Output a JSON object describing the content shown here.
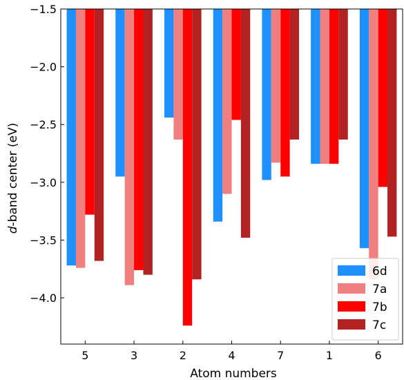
{
  "chart_data": {
    "type": "bar",
    "xlabel": "Atom numbers",
    "ylabel_italic": "d",
    "ylabel_rest": "-band center (eV)",
    "categories": [
      "5",
      "3",
      "2",
      "4",
      "7",
      "1",
      "6"
    ],
    "series": [
      {
        "name": "6d",
        "color": "#1e90ff",
        "values": [
          -3.72,
          -2.95,
          -2.44,
          -3.34,
          -2.98,
          -2.84,
          -3.57
        ]
      },
      {
        "name": "7a",
        "color": "#f08080",
        "values": [
          -3.74,
          -3.89,
          -2.63,
          -3.1,
          -2.83,
          -2.84,
          -3.84
        ]
      },
      {
        "name": "7b",
        "color": "#ff0000",
        "values": [
          -3.28,
          -3.76,
          -4.24,
          -2.46,
          -2.95,
          -2.84,
          -3.04
        ]
      },
      {
        "name": "7c",
        "color": "#b22222",
        "values": [
          -3.68,
          -3.8,
          -3.84,
          -3.48,
          -2.63,
          -2.63,
          -3.47
        ]
      }
    ],
    "yticks": [
      "−1.5",
      "−2.0",
      "−2.5",
      "−3.0",
      "−3.5",
      "−4.0"
    ],
    "ytick_values": [
      -1.5,
      -2.0,
      -2.5,
      -3.0,
      -3.5,
      -4.0
    ],
    "ylim": [
      -4.4,
      -1.5
    ],
    "bar_baseline": -1.5,
    "legend_position": "bottom-right",
    "grid": false
  }
}
